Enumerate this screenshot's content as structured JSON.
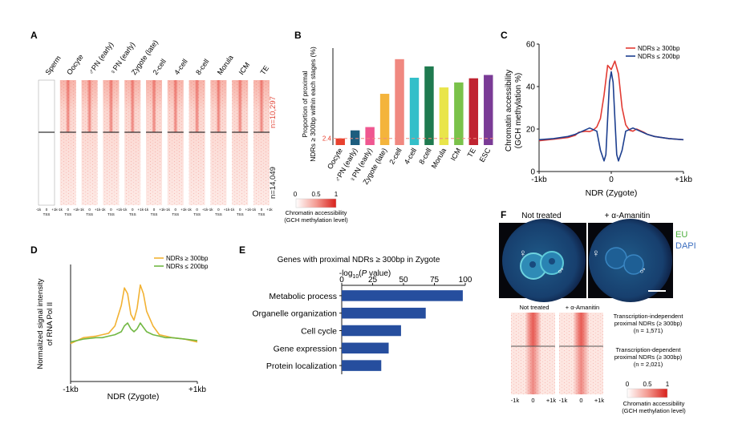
{
  "panel_labels": [
    "A",
    "B",
    "C",
    "D",
    "E",
    "F"
  ],
  "panel_a": {
    "stages": [
      "Sperm",
      "Oocyte",
      "♂PN (early)",
      "♀PN (early)",
      "Zygote (late)",
      "2-cell",
      "4-cell",
      "8-cell",
      "Morula",
      "ICM",
      "TE"
    ],
    "n_top": "n=10,297",
    "n_bottom": "n=14,049",
    "tick_labels": [
      "-1k",
      "0",
      "+1k"
    ],
    "tss_label": "TSS"
  },
  "colorbar_legend": {
    "min": "0",
    "mid": "0.5",
    "max": "1",
    "title_line1": "Chromatin accessibility",
    "title_line2": "(GCH methylation level)"
  },
  "colors": {
    "heatmap_red": "#e23b33",
    "c_red": "#e23b33",
    "c_blue": "#1d3f8f",
    "d_orange": "#f2b233",
    "d_green": "#72b844",
    "e_bar": "#264e9e",
    "ref_line": "#f08a7e",
    "fluor_green": "#4caf3c"
  },
  "chart_data": [
    {
      "panel": "B",
      "type": "bar",
      "title": "",
      "ylabel_line1": "Proportion of proximal",
      "ylabel_line2": "NDRs ≥ 300bp within each stages (%)",
      "categories": [
        "Oocyte",
        "♂PN (early)",
        "♀PN (early)",
        "Zygote (late)",
        "2-cell",
        "4-cell",
        "8-cell",
        "Morula",
        "ICM",
        "TE",
        "ESC"
      ],
      "values": [
        2.4,
        5.3,
        6.5,
        18.5,
        31.0,
        24.3,
        28.4,
        20.8,
        22.6,
        24.1,
        25.3
      ],
      "bar_colors": [
        "#e8412e",
        "#1d5d7e",
        "#ef5790",
        "#f4b43c",
        "#f08880",
        "#33bfc9",
        "#1f7a4f",
        "#e9e54a",
        "#7ac24a",
        "#c02431",
        "#7a3b96"
      ],
      "reference_line": 2.4,
      "reference_label": "2.4",
      "ylim": [
        0,
        35
      ]
    },
    {
      "panel": "C",
      "type": "line",
      "xlabel": "NDR (Zygote)",
      "ylabel_line1": "Chromatin accessibility",
      "ylabel_line2": "(GCH methylation %)",
      "x_tick_labels": [
        "-1kb",
        "0",
        "+1kb"
      ],
      "y_ticks": [
        0,
        20,
        40,
        60
      ],
      "ylim": [
        0,
        60
      ],
      "xlim": [
        -1000,
        1000
      ],
      "legend_position": "top-right",
      "series": [
        {
          "name": "NDRs ≥ 300bp",
          "color": "#e23b33",
          "x": [
            -1000,
            -800,
            -600,
            -500,
            -450,
            -350,
            -300,
            -250,
            -200,
            -150,
            -100,
            -50,
            0,
            50,
            100,
            150,
            200,
            250,
            300,
            350,
            450,
            500,
            600,
            800,
            1000
          ],
          "y": [
            14.5,
            15.2,
            16.0,
            17.0,
            18.5,
            19.0,
            18.8,
            19.5,
            21.0,
            25.0,
            36.0,
            50.0,
            48.0,
            52.0,
            46.0,
            30.0,
            22.0,
            19.5,
            19.0,
            20.0,
            18.5,
            17.5,
            16.5,
            15.5,
            15.0
          ]
        },
        {
          "name": "NDRs ≤ 200bp",
          "color": "#1d3f8f",
          "x": [
            -1000,
            -800,
            -600,
            -500,
            -400,
            -300,
            -200,
            -150,
            -100,
            -75,
            -50,
            -25,
            0,
            25,
            50,
            75,
            100,
            150,
            200,
            300,
            400,
            500,
            600,
            800,
            1000
          ],
          "y": [
            15.0,
            15.5,
            16.5,
            17.5,
            19.0,
            20.5,
            19.0,
            10.0,
            5.0,
            8.0,
            25.0,
            42.0,
            47.0,
            42.0,
            25.0,
            8.0,
            5.0,
            10.0,
            19.0,
            20.5,
            19.0,
            17.5,
            16.5,
            15.5,
            15.0
          ]
        }
      ]
    },
    {
      "panel": "D",
      "type": "line",
      "xlabel": "NDR (Zygote)",
      "ylabel_line1": "Normalized signal intensity",
      "ylabel_line2": "of RNA Pol II",
      "x_tick_labels": [
        "-1kb",
        "+1kb"
      ],
      "ylim": [
        0,
        4
      ],
      "xlim": [
        -1000,
        1000
      ],
      "legend_position": "top-right",
      "series": [
        {
          "name": "NDRs ≥ 300bp",
          "color": "#f2b233",
          "x": [
            -1000,
            -800,
            -600,
            -500,
            -400,
            -300,
            -200,
            -150,
            -100,
            -50,
            0,
            50,
            100,
            150,
            200,
            300,
            400,
            500,
            600,
            800,
            1000
          ],
          "y": [
            1.3,
            1.5,
            1.55,
            1.6,
            1.65,
            1.9,
            2.6,
            3.2,
            3.0,
            2.3,
            2.1,
            2.5,
            3.3,
            3.0,
            2.4,
            1.9,
            1.6,
            1.55,
            1.5,
            1.45,
            1.35
          ]
        },
        {
          "name": "NDRs ≤ 200bp",
          "color": "#72b844",
          "x": [
            -1000,
            -800,
            -600,
            -500,
            -400,
            -300,
            -200,
            -150,
            -100,
            -50,
            0,
            50,
            100,
            150,
            200,
            300,
            400,
            500,
            600,
            800,
            1000
          ],
          "y": [
            1.35,
            1.45,
            1.5,
            1.5,
            1.55,
            1.6,
            1.7,
            1.9,
            2.0,
            1.8,
            1.7,
            1.8,
            2.0,
            1.85,
            1.7,
            1.6,
            1.55,
            1.5,
            1.5,
            1.45,
            1.4
          ]
        }
      ]
    },
    {
      "panel": "E",
      "type": "bar",
      "orientation": "horizontal",
      "title": "Genes with proximal NDRs ≥ 300bp in Zygote",
      "xlabel_prefix": "-log",
      "xlabel_sub": "10",
      "xlabel_open": "(",
      "xlabel_italic": "P",
      "xlabel_suffix": " value)",
      "x_ticks": [
        0,
        25,
        50,
        75,
        100
      ],
      "xlim": [
        0,
        100
      ],
      "categories": [
        "Metabolic process",
        "Organelle organization",
        "Cell cycle",
        "Gene expression",
        "Protein localization"
      ],
      "values": [
        98,
        68,
        48,
        38,
        32
      ]
    }
  ],
  "panel_f": {
    "col_not_treated": "Not treated",
    "col_amanitin": "+ α-Amanitin",
    "legend_eu": "EU",
    "legend_dapi": "DAPI",
    "female_symbol": "♀",
    "male_symbol": "♂",
    "heat_not_treated": "Not treated",
    "heat_amanitin": "+ α-Amanitin",
    "group1_line1": "Transcription-independent",
    "group1_line2": "proximal NDRs (≥ 300bp)",
    "group1_line3": "(n = 1,571)",
    "group2_line1": "Transcription-dependent",
    "group2_line2": "proximal NDRs (≥ 300bp)",
    "group2_line3": "(n = 2,021)",
    "tick_labels": [
      "-1k",
      "0",
      "+1k"
    ]
  }
}
